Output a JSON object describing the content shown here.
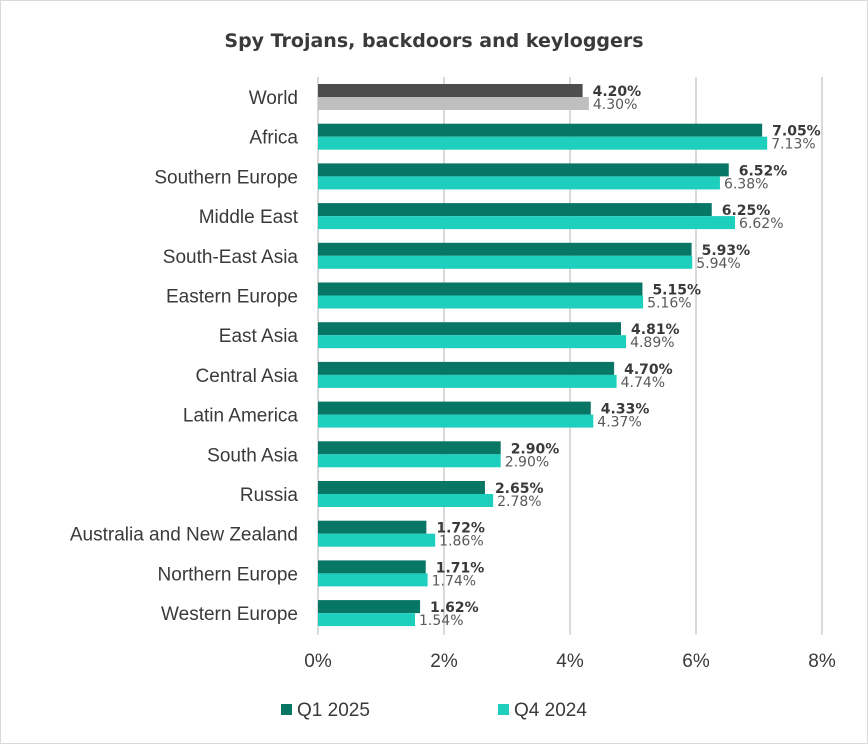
{
  "chart_data": {
    "type": "bar",
    "orientation": "horizontal",
    "title": "Spy Trojans, backdoors and keyloggers",
    "categories": [
      "World",
      "Africa",
      "Southern Europe",
      "Middle East",
      "South-East Asia",
      "Eastern Europe",
      "East Asia",
      "Central Asia",
      "Latin America",
      "South Asia",
      "Russia",
      "Australia and New Zealand",
      "Northern Europe",
      "Western Europe"
    ],
    "series": [
      {
        "name": "Q1 2025",
        "color": "#087665",
        "highlight_color": "#4d4d4d",
        "values": [
          4.2,
          7.05,
          6.52,
          6.25,
          5.93,
          5.15,
          4.81,
          4.7,
          4.33,
          2.9,
          2.65,
          1.72,
          1.71,
          1.62
        ],
        "labels": [
          "4.20%",
          "7.05%",
          "6.52%",
          "6.25%",
          "5.93%",
          "5.15%",
          "4.81%",
          "4.70%",
          "4.33%",
          "2.90%",
          "2.65%",
          "1.72%",
          "1.71%",
          "1.62%"
        ]
      },
      {
        "name": "Q4 2024",
        "color": "#1fcfbd",
        "highlight_color": "#bfbfbf",
        "values": [
          4.3,
          7.13,
          6.38,
          6.62,
          5.94,
          5.16,
          4.89,
          4.74,
          4.37,
          2.9,
          2.78,
          1.86,
          1.74,
          1.54
        ],
        "labels": [
          "4.30%",
          "7.13%",
          "6.38%",
          "6.62%",
          "5.94%",
          "5.16%",
          "4.89%",
          "4.74%",
          "4.37%",
          "2.90%",
          "2.78%",
          "1.86%",
          "1.74%",
          "1.54%"
        ]
      }
    ],
    "highlighted_category": "World",
    "xlim": [
      0,
      8
    ],
    "xticks": [
      0,
      2,
      4,
      6,
      8
    ],
    "xtick_labels": [
      "0%",
      "2%",
      "4%",
      "6%",
      "8%"
    ],
    "grid": true,
    "gridline_color": "#d9d9d9",
    "legend_position": "bottom"
  }
}
